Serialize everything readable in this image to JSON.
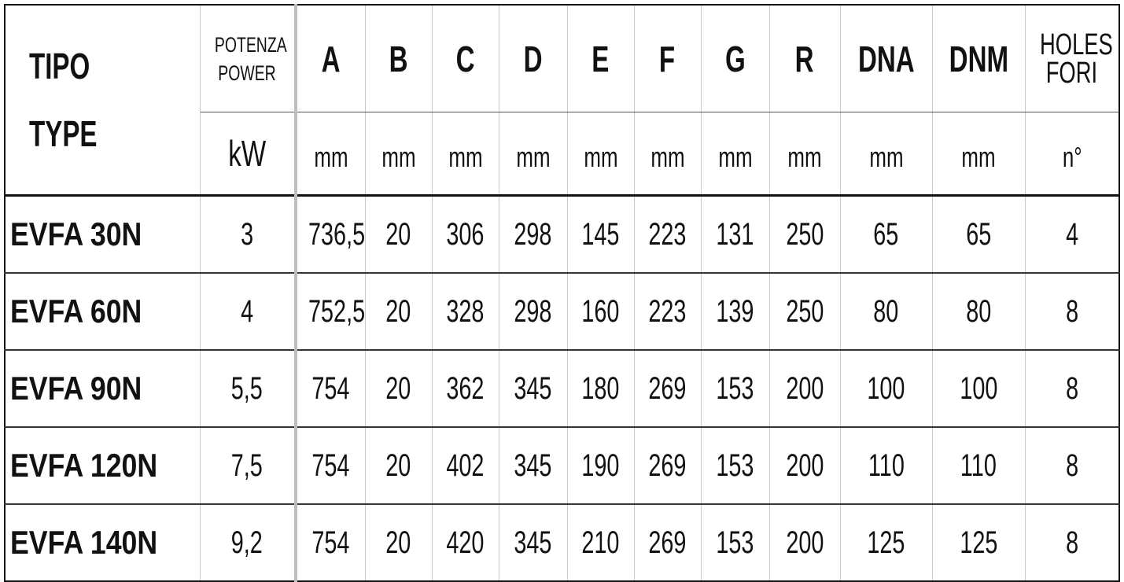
{
  "header": {
    "tipo": "TIPO",
    "type": "TYPE",
    "potenza": "POTENZA",
    "power": "POWER",
    "power_unit": "kW",
    "columns": [
      "A",
      "B",
      "C",
      "D",
      "E",
      "F",
      "G",
      "R",
      "DNA",
      "DNM"
    ],
    "column_unit": "mm",
    "holes": "HOLES",
    "fori": "FORI",
    "holes_unit": "n°"
  },
  "rows": [
    {
      "type": "EVFA 30N",
      "power": "3",
      "values": [
        "736,5",
        "20",
        "306",
        "298",
        "145",
        "223",
        "131",
        "250",
        "65",
        "65"
      ],
      "holes": "4"
    },
    {
      "type": "EVFA 60N",
      "power": "4",
      "values": [
        "752,5",
        "20",
        "328",
        "298",
        "160",
        "223",
        "139",
        "250",
        "80",
        "80"
      ],
      "holes": "8"
    },
    {
      "type": "EVFA 90N",
      "power": "5,5",
      "values": [
        "754",
        "20",
        "362",
        "345",
        "180",
        "269",
        "153",
        "200",
        "100",
        "100"
      ],
      "holes": "8"
    },
    {
      "type": "EVFA 120N",
      "power": "7,5",
      "values": [
        "754",
        "20",
        "402",
        "345",
        "190",
        "269",
        "153",
        "200",
        "110",
        "110"
      ],
      "holes": "8"
    },
    {
      "type": "EVFA 140N",
      "power": "9,2",
      "values": [
        "754",
        "20",
        "420",
        "345",
        "210",
        "269",
        "153",
        "200",
        "125",
        "125"
      ],
      "holes": "8"
    }
  ]
}
